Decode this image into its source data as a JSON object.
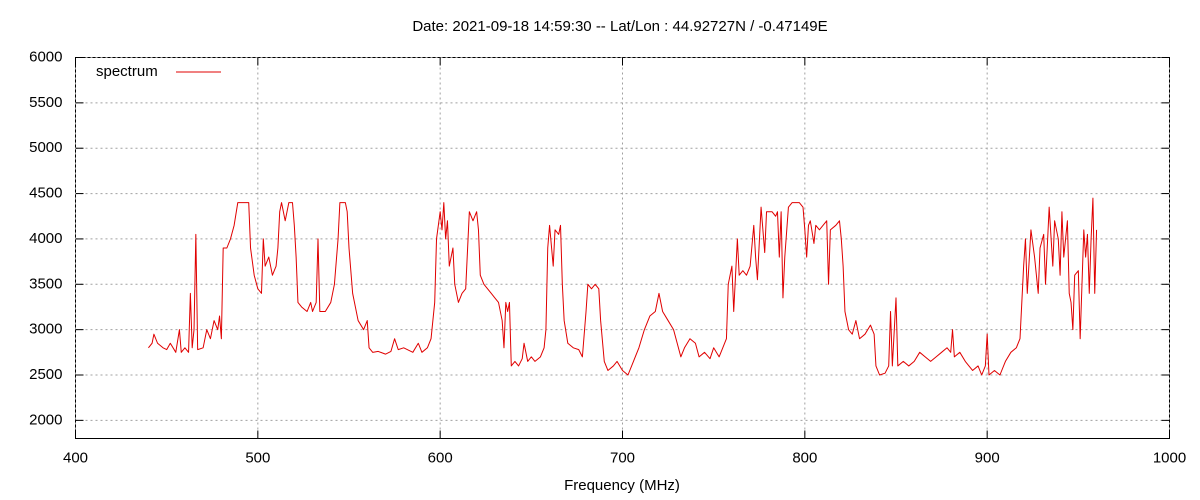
{
  "chart_data": {
    "type": "line",
    "title": "Date: 2021-09-18 14:59:30  --  Lat/Lon : 44.92727N / -0.47149E",
    "x_label": "Frequency (MHz)",
    "xlim": [
      400,
      1000
    ],
    "xticks": [
      400,
      500,
      600,
      700,
      800,
      900,
      1000
    ],
    "ylim": [
      1800,
      6000
    ],
    "yticks": [
      2000,
      2500,
      3000,
      3500,
      4000,
      4500,
      5000,
      5500,
      6000
    ],
    "grid": true,
    "legend": "top-left",
    "series": [
      {
        "name": "spectrum",
        "color": "#e00000",
        "x": [
          440,
          442,
          443,
          445,
          448,
          450,
          452,
          455,
          457,
          458,
          460,
          462,
          463,
          464,
          465,
          466,
          467,
          470,
          472,
          474,
          476,
          478,
          479,
          480,
          481,
          483,
          485,
          487,
          489,
          492,
          495,
          496,
          498,
          500,
          502,
          503,
          504,
          506,
          508,
          510,
          511,
          512,
          513,
          515,
          517,
          519,
          520,
          521,
          522,
          524,
          527,
          529,
          530,
          532,
          533,
          534,
          537,
          540,
          542,
          544,
          545,
          548,
          549,
          550,
          552,
          555,
          558,
          560,
          561,
          563,
          566,
          570,
          573,
          575,
          577,
          580,
          585,
          588,
          590,
          593,
          595,
          597,
          598,
          600,
          601,
          602,
          603,
          604,
          605,
          607,
          608,
          610,
          612,
          614,
          616,
          618,
          620,
          621,
          622,
          624,
          626,
          628,
          630,
          632,
          634,
          635,
          636,
          637,
          638,
          639,
          641,
          643,
          645,
          646,
          648,
          650,
          652,
          655,
          657,
          658,
          659,
          660,
          662,
          663,
          665,
          666,
          667,
          668,
          670,
          673,
          676,
          678,
          680,
          681,
          683,
          685,
          687,
          688,
          690,
          692,
          695,
          697,
          700,
          703,
          706,
          709,
          712,
          715,
          718,
          720,
          722,
          725,
          728,
          730,
          732,
          734,
          737,
          740,
          742,
          745,
          748,
          750,
          753,
          755,
          757,
          758,
          760,
          761,
          763,
          764,
          766,
          768,
          770,
          772,
          773,
          774,
          776,
          778,
          779,
          782,
          784,
          785,
          786,
          787,
          788,
          789,
          791,
          793,
          797,
          799,
          800,
          801,
          802,
          803,
          805,
          806,
          808,
          810,
          812,
          813,
          814,
          817,
          819,
          820,
          821,
          822,
          824,
          826,
          828,
          830,
          833,
          836,
          838,
          839,
          841,
          844,
          846,
          847,
          848,
          850,
          851,
          854,
          857,
          860,
          863,
          866,
          869,
          872,
          875,
          878,
          880,
          881,
          882,
          885,
          888,
          890,
          892,
          895,
          897,
          899,
          900,
          901,
          904,
          907,
          910,
          913,
          916,
          918,
          919,
          920,
          921,
          922,
          924,
          926,
          928,
          929,
          931,
          932,
          934,
          936,
          937,
          939,
          940,
          941,
          942,
          944,
          945,
          946,
          947,
          948,
          950,
          951,
          952,
          953,
          954,
          955,
          956,
          957,
          958,
          959,
          960
        ],
        "values": [
          2800,
          2850,
          2950,
          2850,
          2800,
          2780,
          2850,
          2750,
          3000,
          2750,
          2800,
          2750,
          3400,
          2800,
          3000,
          4050,
          2780,
          2800,
          3000,
          2900,
          3100,
          3000,
          3150,
          2900,
          3900,
          3900,
          4000,
          4150,
          4400,
          4400,
          4400,
          3900,
          3600,
          3450,
          3400,
          4000,
          3700,
          3800,
          3600,
          3700,
          3900,
          4300,
          4400,
          4200,
          4400,
          4400,
          4150,
          3800,
          3300,
          3250,
          3200,
          3300,
          3200,
          3300,
          4000,
          3200,
          3200,
          3300,
          3500,
          4000,
          4400,
          4400,
          4300,
          3900,
          3400,
          3100,
          3000,
          3100,
          2800,
          2750,
          2760,
          2730,
          2760,
          2900,
          2780,
          2800,
          2750,
          2850,
          2750,
          2800,
          2900,
          3300,
          4000,
          4300,
          4100,
          4400,
          4000,
          4200,
          3700,
          3900,
          3500,
          3300,
          3400,
          3450,
          4300,
          4200,
          4300,
          4100,
          3600,
          3500,
          3450,
          3400,
          3350,
          3300,
          3100,
          2800,
          3300,
          3200,
          3300,
          2600,
          2650,
          2600,
          2680,
          2850,
          2650,
          2700,
          2650,
          2700,
          2800,
          3000,
          3900,
          4150,
          3700,
          4100,
          4050,
          4150,
          3500,
          3100,
          2850,
          2800,
          2780,
          2700,
          3200,
          3500,
          3450,
          3500,
          3450,
          3100,
          2650,
          2550,
          2600,
          2650,
          2550,
          2500,
          2650,
          2800,
          3000,
          3150,
          3200,
          3400,
          3200,
          3100,
          3000,
          2850,
          2700,
          2800,
          2900,
          2850,
          2700,
          2750,
          2680,
          2800,
          2700,
          2800,
          2900,
          3500,
          3700,
          3200,
          4000,
          3600,
          3650,
          3600,
          3700,
          4150,
          3800,
          3550,
          4350,
          3850,
          4300,
          4300,
          4250,
          4300,
          3800,
          4300,
          3350,
          3800,
          4350,
          4400,
          4400,
          4350,
          4100,
          3800,
          4150,
          4200,
          3950,
          4150,
          4100,
          4150,
          4200,
          3500,
          4100,
          4150,
          4200,
          4000,
          3700,
          3200,
          3000,
          2950,
          3100,
          2900,
          2950,
          3050,
          2950,
          2600,
          2500,
          2520,
          2600,
          3200,
          2600,
          3350,
          2600,
          2650,
          2600,
          2650,
          2750,
          2700,
          2650,
          2700,
          2750,
          2800,
          2750,
          3000,
          2700,
          2750,
          2650,
          2600,
          2550,
          2600,
          2500,
          2600,
          2950,
          2500,
          2550,
          2500,
          2650,
          2750,
          2800,
          2900,
          3300,
          3700,
          4000,
          3400,
          4100,
          3800,
          3400,
          3900,
          4050,
          3500,
          4350,
          3700,
          4200,
          4000,
          3600,
          4300,
          3800,
          4200,
          3400,
          3300,
          3000,
          3600,
          3650,
          2900,
          3500,
          4100,
          3800,
          4050,
          3400,
          4000,
          4450,
          3400,
          4100
        ]
      }
    ]
  }
}
